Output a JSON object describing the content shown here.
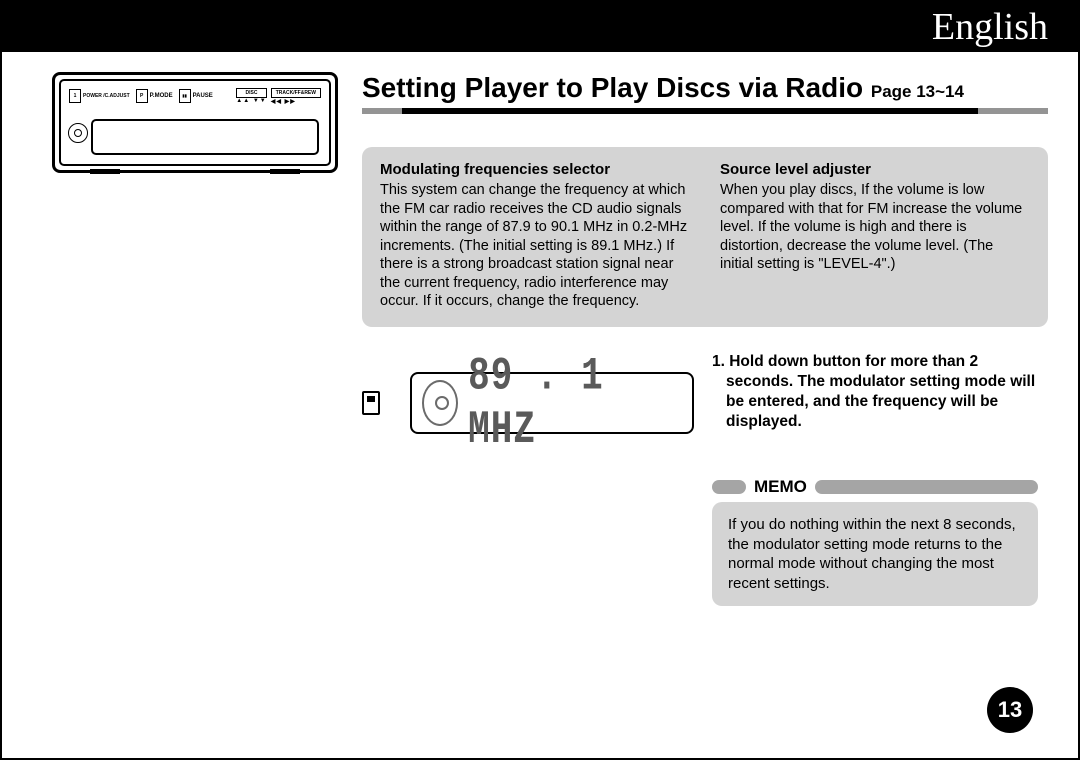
{
  "topbar": {
    "language": "English"
  },
  "heading": {
    "title": "Setting Player to Play Discs via Radio",
    "page_ref": "Page 13~14"
  },
  "device": {
    "labels": [
      "POWER /C.ADJUST",
      "P.MODE",
      "PAUSE",
      "DISC",
      "TRACK/FF&REW"
    ],
    "marker_1": "1",
    "marker_P": "P",
    "marker_pause": "▮▮",
    "arrows_up": "▲▲ ▼▼",
    "arrows_lr": "◀◀ ▶▶"
  },
  "info": {
    "col1": {
      "title": "Modulating frequencies selector",
      "body": "This system can change the frequency at which the FM car radio receives the CD audio signals within the range of 87.9 to 90.1 MHz in 0.2-MHz increments. (The initial setting is 89.1 MHz.) If there is a strong broadcast station signal near the current frequency, radio interference may occur. If it occurs, change the frequency."
    },
    "col2": {
      "title": "Source level adjuster",
      "body": "When you play discs, If the volume is low compared with that for FM increase the volume level. If the volume is high and there is distortion, decrease the volume level. (The initial setting is \"LEVEL-4\".)"
    }
  },
  "lcd": {
    "value": "89 . 1 MHZ"
  },
  "instruction": "1. Hold down button for more than 2 seconds. The modulator setting mode will be entered, and the frequency will be displayed.",
  "memo": {
    "label": "MEMO",
    "body": "If you do nothing within the next 8 seconds, the modulator setting mode returns to the normal mode without changing the most recent settings."
  },
  "page_number": "13",
  "colors": {
    "grey_box": "#d4d4d4",
    "pill": "#a5a5a5",
    "lcd_text": "#5a5a5a",
    "underline_mid_grey": "#949494"
  }
}
